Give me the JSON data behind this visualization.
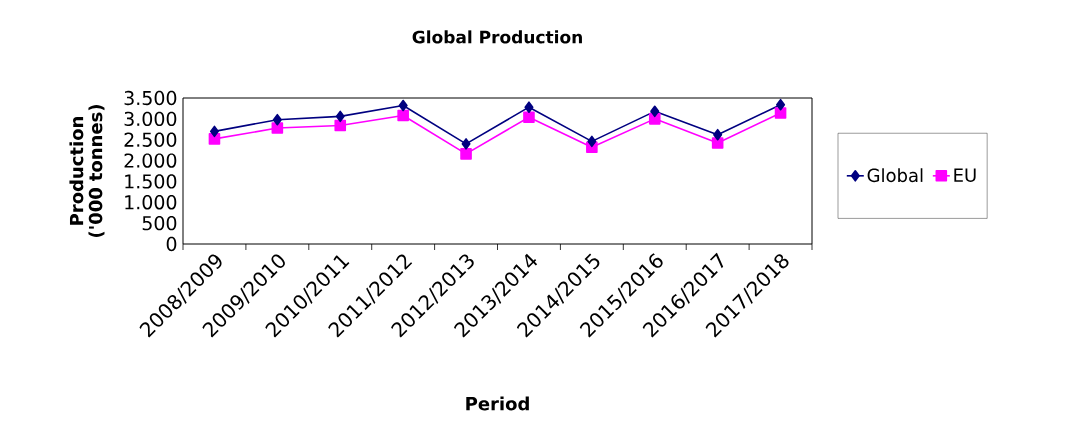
{
  "chart_data": {
    "type": "line",
    "title": "Global Production",
    "xlabel": "Period",
    "ylabel": "Production ('000 tonnes)",
    "categories": [
      "2008/2009",
      "2009/2010",
      "2010/2011",
      "2011/2012",
      "2012/2013",
      "2013/2014",
      "2014/2015",
      "2015/2016",
      "2016/2017",
      "2017/2018"
    ],
    "series": [
      {
        "name": "Global",
        "color": "#000080",
        "marker": "diamond",
        "values": [
          2700,
          2980,
          3060,
          3320,
          2400,
          3280,
          2460,
          3180,
          2620,
          3340
        ]
      },
      {
        "name": "EU",
        "color": "#ff00ff",
        "marker": "square",
        "values": [
          2520,
          2780,
          2840,
          3080,
          2160,
          3040,
          2320,
          3000,
          2420,
          3140
        ]
      }
    ],
    "ylim": [
      0,
      3500
    ],
    "yticks": [
      0,
      500,
      {
        "value": 1000,
        "label": "1.000"
      },
      {
        "value": 1500,
        "label": "1.500"
      },
      {
        "value": 2000,
        "label": "2.000"
      },
      {
        "value": 2500,
        "label": "2.500"
      },
      {
        "value": 3000,
        "label": "3.000"
      },
      {
        "value": 3500,
        "label": "3.500"
      }
    ],
    "grid": false,
    "legend": "right",
    "line_style": "solid"
  }
}
